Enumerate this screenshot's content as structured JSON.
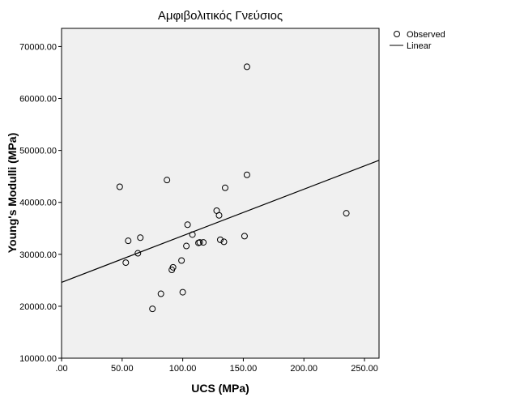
{
  "chart_data": {
    "type": "scatter",
    "title": "Αμφιβολιτικός Γνεύσιος",
    "xlabel": "UCS (MPa)",
    "ylabel": "Young's Modulli (MPa)",
    "xlim": [
      0,
      262
    ],
    "ylim": [
      10000,
      73500
    ],
    "x_ticks": [
      0,
      50,
      100,
      150,
      200,
      250
    ],
    "x_tick_labels": [
      ".00",
      "50.00",
      "100.00",
      "150.00",
      "200.00",
      "250.00"
    ],
    "y_ticks": [
      10000,
      20000,
      30000,
      40000,
      50000,
      60000,
      70000
    ],
    "y_tick_labels": [
      "10000.00",
      "20000.00",
      "30000.00",
      "40000.00",
      "50000.00",
      "60000.00",
      "70000.00"
    ],
    "grid": false,
    "legend_position": "right",
    "series": [
      {
        "name": "Observed",
        "points": [
          {
            "x": 48,
            "y": 43000
          },
          {
            "x": 53,
            "y": 28400
          },
          {
            "x": 55,
            "y": 32600
          },
          {
            "x": 63,
            "y": 30200
          },
          {
            "x": 65,
            "y": 33200
          },
          {
            "x": 75,
            "y": 19500
          },
          {
            "x": 82,
            "y": 22400
          },
          {
            "x": 87,
            "y": 44300
          },
          {
            "x": 91,
            "y": 27000
          },
          {
            "x": 92,
            "y": 27500
          },
          {
            "x": 99,
            "y": 28800
          },
          {
            "x": 100,
            "y": 22700
          },
          {
            "x": 103,
            "y": 31600
          },
          {
            "x": 104,
            "y": 35700
          },
          {
            "x": 108,
            "y": 33800
          },
          {
            "x": 113,
            "y": 32200
          },
          {
            "x": 114,
            "y": 32300
          },
          {
            "x": 117,
            "y": 32300
          },
          {
            "x": 128,
            "y": 38400
          },
          {
            "x": 130,
            "y": 37500
          },
          {
            "x": 131,
            "y": 32800
          },
          {
            "x": 134,
            "y": 32400
          },
          {
            "x": 135,
            "y": 42800
          },
          {
            "x": 151,
            "y": 33500
          },
          {
            "x": 153,
            "y": 45300
          },
          {
            "x": 153,
            "y": 66100
          },
          {
            "x": 235,
            "y": 37900
          }
        ]
      },
      {
        "name": "Linear",
        "line": [
          {
            "x": 0,
            "y": 24600
          },
          {
            "x": 262,
            "y": 48100
          }
        ]
      }
    ]
  },
  "colors": {
    "plot_background": "#f0f0f0",
    "axis": "#000000",
    "marker": "#000000"
  }
}
